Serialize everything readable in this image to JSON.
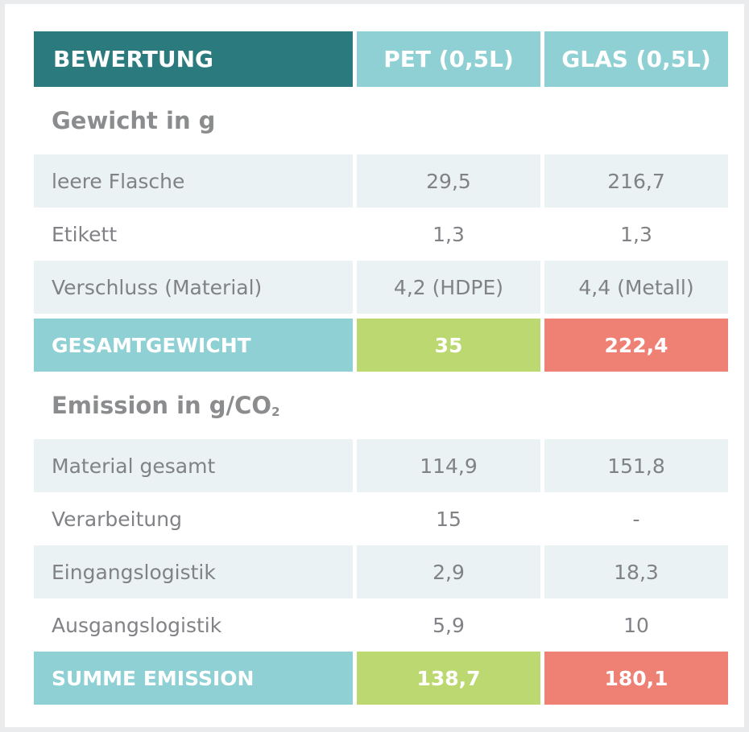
{
  "header": {
    "label": "BEWERTUNG",
    "col_pet": "PET (0,5L)",
    "col_glas": "GLAS (0,5L)"
  },
  "sections": {
    "weight": {
      "title": "Gewicht in g",
      "rows": [
        {
          "label": "leere Flasche",
          "pet": "29,5",
          "glas": "216,7"
        },
        {
          "label": "Etikett",
          "pet": "1,3",
          "glas": "1,3"
        },
        {
          "label": "Verschluss (Material)",
          "pet": "4,2 (HDPE)",
          "glas": "4,4 (Metall)"
        }
      ],
      "total": {
        "label": "GESAMTGEWICHT",
        "pet": "35",
        "glas": "222,4"
      }
    },
    "emission": {
      "title": "Emission in g/CO",
      "title_sub": "2",
      "rows": [
        {
          "label": "Material gesamt",
          "pet": "114,9",
          "glas": "151,8"
        },
        {
          "label": "Verarbeitung",
          "pet": "15",
          "glas": "-"
        },
        {
          "label": "Eingangslogistik",
          "pet": "2,9",
          "glas": "18,3"
        },
        {
          "label": "Ausgangslogistik",
          "pet": "5,9",
          "glas": "10"
        }
      ],
      "total": {
        "label": "SUMME EMISSION",
        "pet": "138,7",
        "glas": "180,1"
      }
    }
  },
  "colors": {
    "header_dark": "#2b7b7e",
    "header_light": "#8ed0d4",
    "good": "#bcd870",
    "bad": "#ef8074",
    "row_shade": "#eaf2f3"
  }
}
